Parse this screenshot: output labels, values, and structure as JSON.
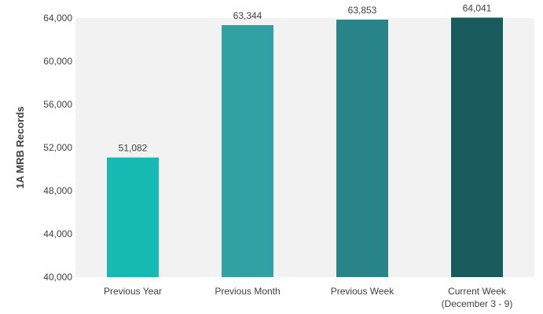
{
  "chart_data": {
    "type": "bar",
    "title": "",
    "xlabel": "",
    "ylabel": "1A MRB Records",
    "categories": [
      [
        "Previous Year"
      ],
      [
        "Previous Month"
      ],
      [
        "Previous Week"
      ],
      [
        "Current Week",
        "(December 3 - 9)"
      ]
    ],
    "values": [
      51082,
      63344,
      63853,
      64041
    ],
    "value_labels": [
      "51,082",
      "63,344",
      "63,853",
      "64,041"
    ],
    "colors": [
      "#17bab3",
      "#31a1a3",
      "#288489",
      "#1a5c5d"
    ],
    "ylim": [
      40000,
      64000
    ],
    "yticks": [
      40000,
      44000,
      48000,
      52000,
      56000,
      60000,
      64000
    ],
    "ytick_labels": [
      "40,000",
      "44,000",
      "48,000",
      "52,000",
      "56,000",
      "60,000",
      "64,000"
    ],
    "grid": false,
    "plot_background": "#f2f2f2"
  }
}
